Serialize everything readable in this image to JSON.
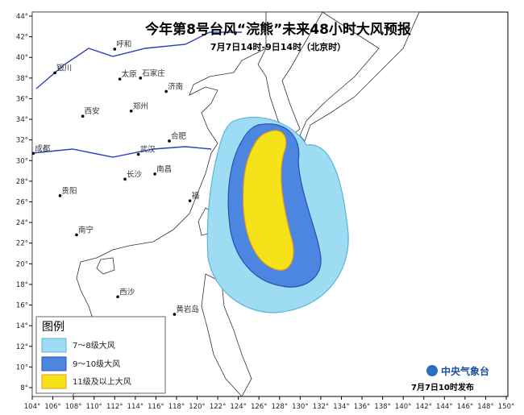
{
  "title": "今年第8号台风“浣熊”未来48小时大风预报",
  "subtitle": "7月7日14时-9日14时（北京时）",
  "lon_ticks": [
    {
      "value": 104,
      "label": "104°"
    },
    {
      "value": 106,
      "label": "106°"
    },
    {
      "value": 108,
      "label": "108°"
    },
    {
      "value": 110,
      "label": "110°"
    },
    {
      "value": 112,
      "label": "112°"
    },
    {
      "value": 114,
      "label": "114°"
    },
    {
      "value": 116,
      "label": "116°"
    },
    {
      "value": 118,
      "label": "118°"
    },
    {
      "value": 120,
      "label": "120°"
    },
    {
      "value": 122,
      "label": "122°"
    },
    {
      "value": 124,
      "label": "124°"
    },
    {
      "value": 126,
      "label": "126°"
    },
    {
      "value": 128,
      "label": "128°"
    },
    {
      "value": 130,
      "label": "130°"
    },
    {
      "value": 132,
      "label": "132°"
    },
    {
      "value": 134,
      "label": "134°"
    },
    {
      "value": 136,
      "label": "136°"
    },
    {
      "value": 138,
      "label": "138°"
    },
    {
      "value": 140,
      "label": "140°"
    },
    {
      "value": 142,
      "label": "142°"
    },
    {
      "value": 144,
      "label": "144°"
    },
    {
      "value": 146,
      "label": "146°"
    },
    {
      "value": 148,
      "label": "148°"
    },
    {
      "value": 150,
      "label": "150°"
    }
  ],
  "lat_ticks": [
    {
      "value": 8,
      "label": "8°"
    },
    {
      "value": 10,
      "label": "10°"
    },
    {
      "value": 12,
      "label": "12°"
    },
    {
      "value": 14,
      "label": "14°"
    },
    {
      "value": 16,
      "label": "16°"
    },
    {
      "value": 18,
      "label": "18°"
    },
    {
      "value": 20,
      "label": "20°"
    },
    {
      "value": 22,
      "label": "22°"
    },
    {
      "value": 24,
      "label": "24°"
    },
    {
      "value": 26,
      "label": "26°"
    },
    {
      "value": 28,
      "label": "28°"
    },
    {
      "value": 30,
      "label": "30°"
    },
    {
      "value": 32,
      "label": "32°"
    },
    {
      "value": 34,
      "label": "34°"
    },
    {
      "value": 36,
      "label": "36°"
    },
    {
      "value": 38,
      "label": "38°"
    },
    {
      "value": 40,
      "label": "40°"
    },
    {
      "value": 42,
      "label": "42°"
    },
    {
      "value": 44,
      "label": "44°"
    }
  ],
  "cities": [
    {
      "name": "呼和",
      "lon": 112,
      "lat": 40.8
    },
    {
      "name": "银川",
      "lon": 106.2,
      "lat": 38.5
    },
    {
      "name": "太原",
      "lon": 112.5,
      "lat": 37.9
    },
    {
      "name": "石家庄",
      "lon": 114.5,
      "lat": 38.0
    },
    {
      "name": "济南",
      "lon": 117,
      "lat": 36.7
    },
    {
      "name": "西安",
      "lon": 108.9,
      "lat": 34.3
    },
    {
      "name": "郑州",
      "lon": 113.6,
      "lat": 34.8
    },
    {
      "name": "合肥",
      "lon": 117.3,
      "lat": 31.9
    },
    {
      "name": "武汉",
      "lon": 114.3,
      "lat": 30.6
    },
    {
      "name": "成都",
      "lon": 104.1,
      "lat": 30.7
    },
    {
      "name": "长沙",
      "lon": 113,
      "lat": 28.2
    },
    {
      "name": "南昌",
      "lon": 115.9,
      "lat": 28.7
    },
    {
      "name": "贵阳",
      "lon": 106.7,
      "lat": 26.6
    },
    {
      "name": "福",
      "lon": 119.3,
      "lat": 26.1
    },
    {
      "name": "南宁",
      "lon": 108.3,
      "lat": 22.8
    },
    {
      "name": "西沙",
      "lon": 112.3,
      "lat": 16.8
    },
    {
      "name": "黄岩岛",
      "lon": 117.8,
      "lat": 15.1
    }
  ],
  "legend": {
    "title": "图例",
    "items": [
      "7～8级大风",
      "9～10级大风",
      "11级及以上大风"
    ]
  },
  "agency": "中央气象台",
  "issued": "7月7日10时发布"
}
